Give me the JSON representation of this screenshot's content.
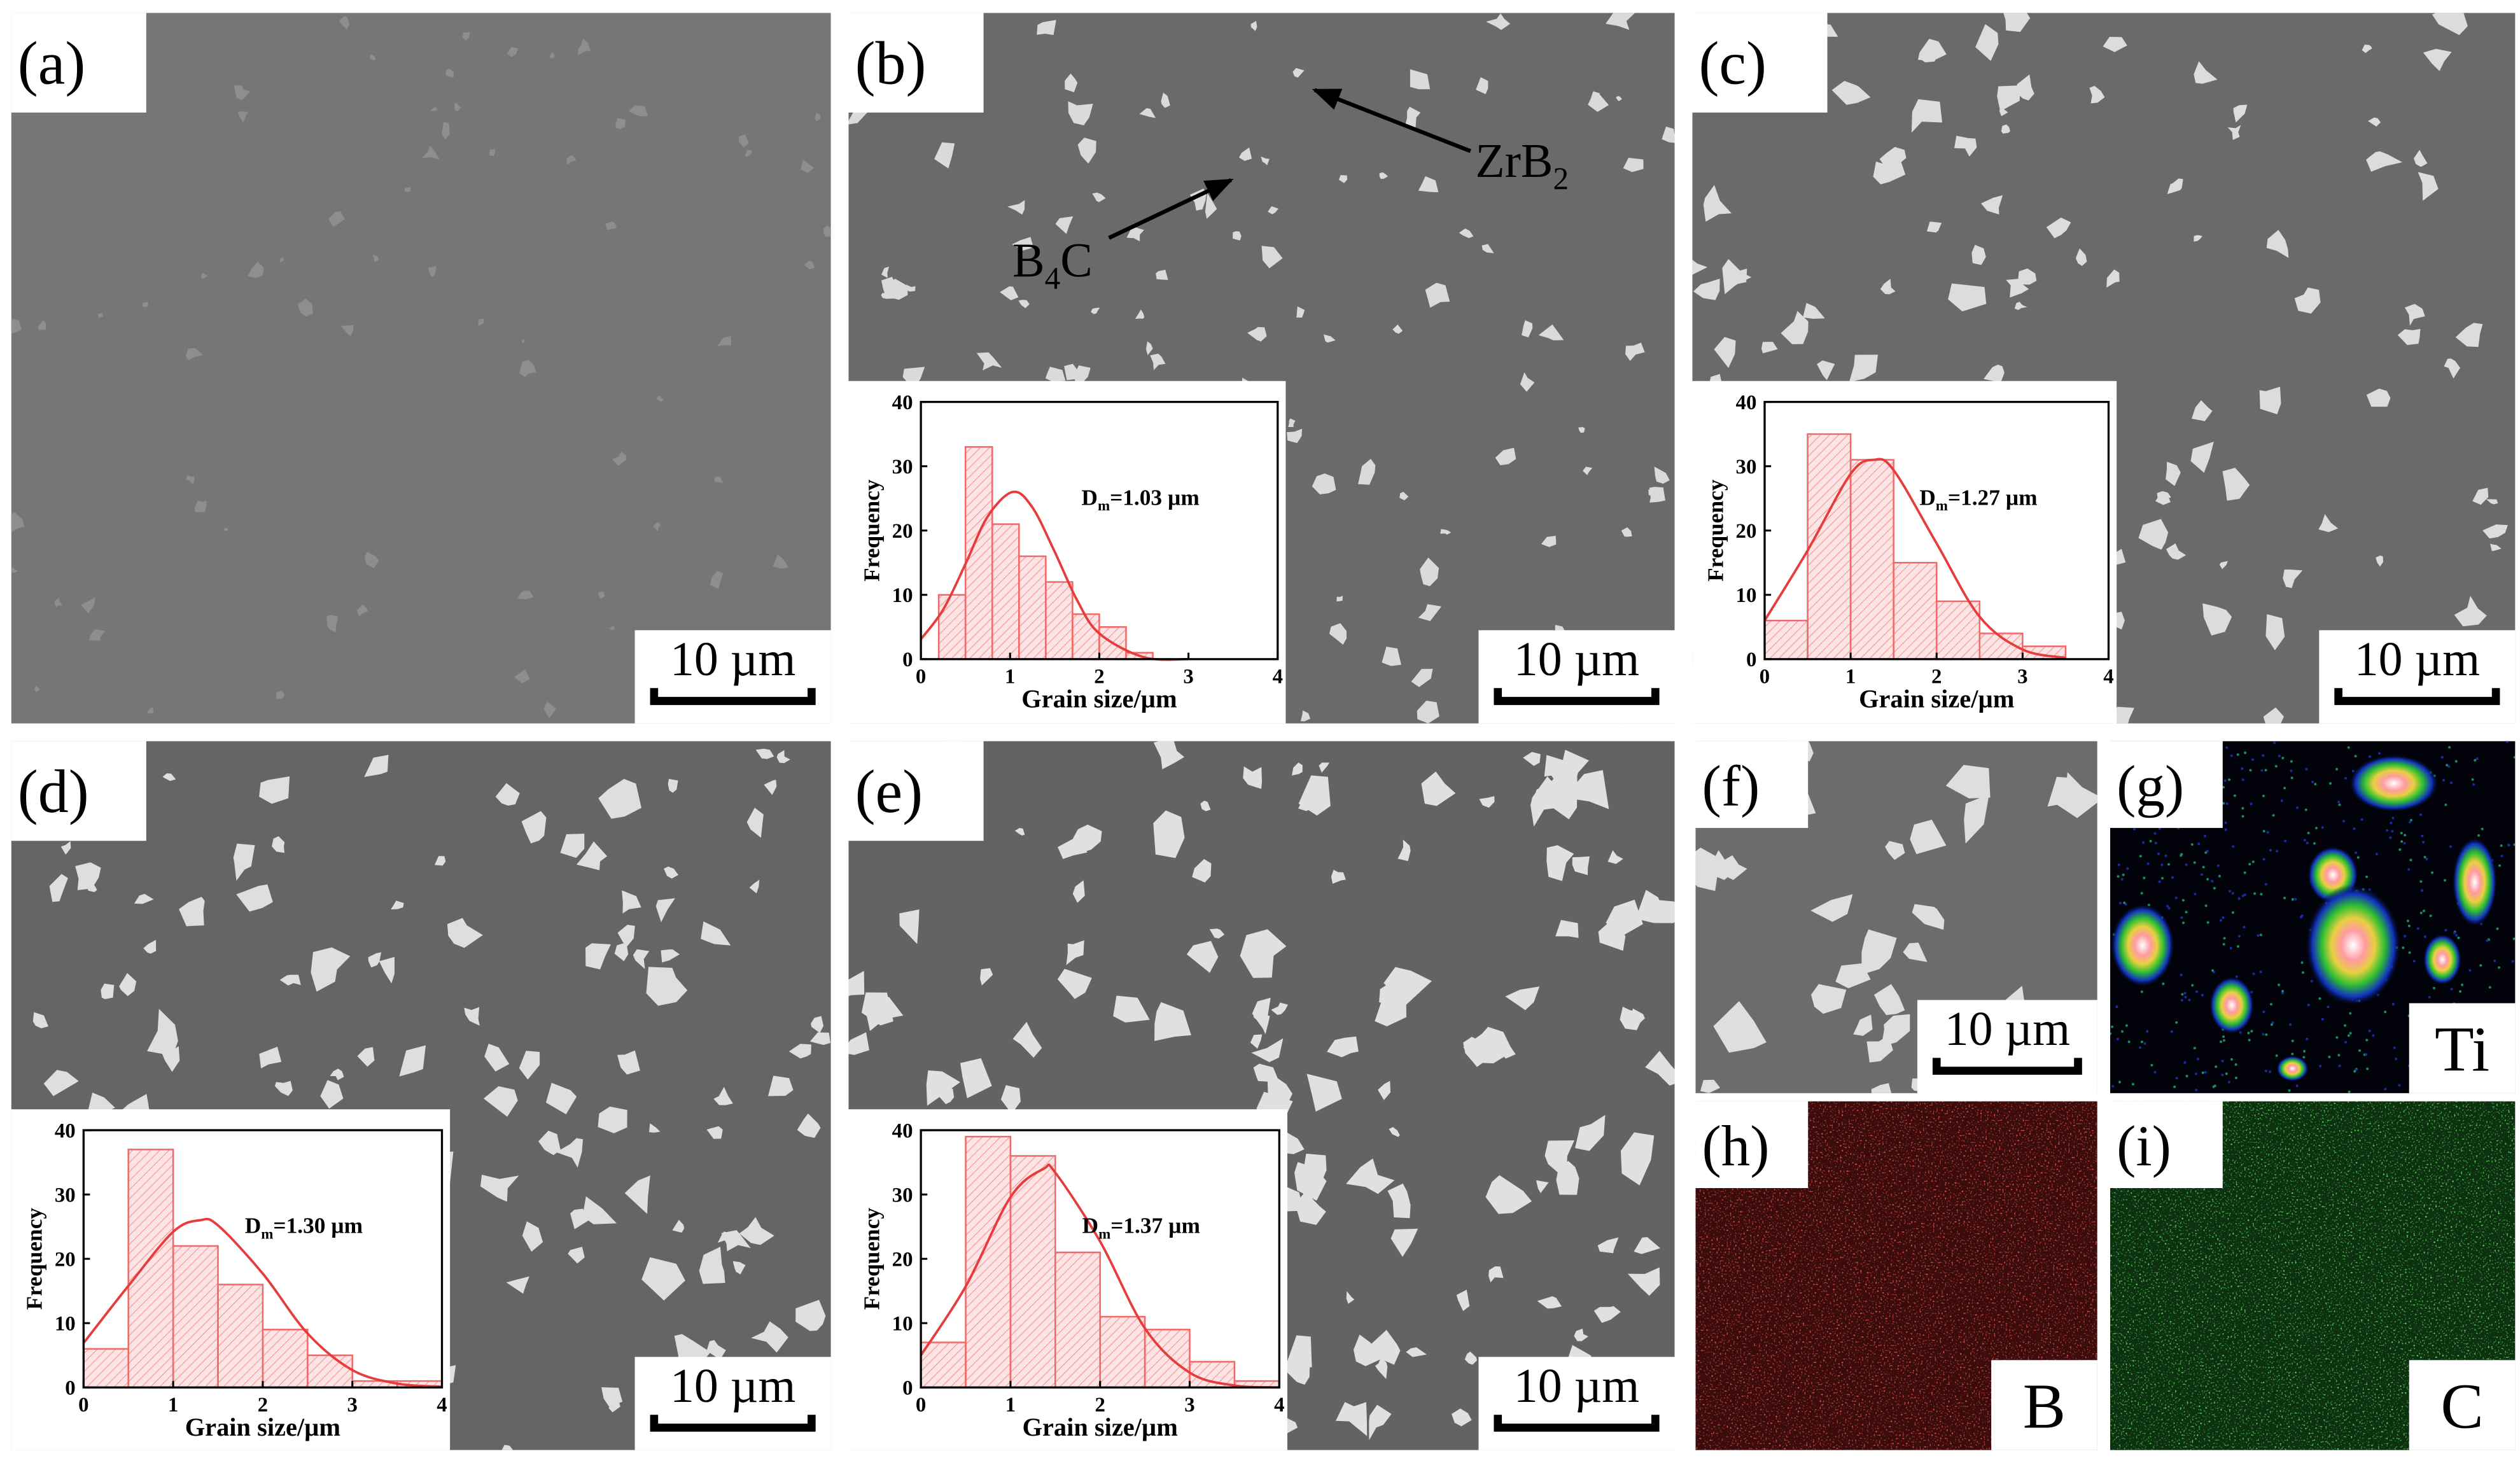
{
  "panels": [
    {
      "label": "(a)",
      "scale_bar": "10 µm"
    },
    {
      "label": "(b)",
      "scale_bar": "10 µm",
      "annotations": [
        {
          "parts": [
            "ZrB",
            "2"
          ]
        },
        {
          "parts": [
            "B",
            "4",
            "C"
          ]
        }
      ]
    },
    {
      "label": "(c)",
      "scale_bar": "10 µm"
    },
    {
      "label": "(d)",
      "scale_bar": "10 µm"
    },
    {
      "label": "(e)",
      "scale_bar": "10 µm"
    },
    {
      "label": "(f)",
      "scale_bar": "10 µm"
    },
    {
      "label": "(g)",
      "element": "Ti"
    },
    {
      "label": "(h)",
      "element": "B"
    },
    {
      "label": "(i)",
      "element": "C"
    }
  ],
  "chart_data": [
    {
      "type": "histogram",
      "xlabel": "Grain size/µm",
      "ylabel": "Frequency",
      "annotation": [
        "D",
        "m",
        "=1.03 µm"
      ],
      "bins": [
        0.2,
        0.5,
        0.8,
        1.1,
        1.4,
        1.7,
        2.0,
        2.3,
        2.6
      ],
      "values": [
        10,
        33,
        21,
        16,
        12,
        7,
        5,
        1
      ],
      "color": "#f06a6a",
      "fit": {
        "x": [
          0,
          0.25,
          0.5,
          0.75,
          1.03,
          1.25,
          1.5,
          1.75,
          2.0,
          2.5,
          3.0
        ],
        "values": [
          3.1,
          7.7,
          14.8,
          22.2,
          26,
          23.6,
          16.7,
          9.2,
          4.0,
          0.3,
          0
        ],
        "color": "#e63c3c"
      },
      "xlim": [
        0,
        4
      ],
      "ylim": [
        0,
        40
      ],
      "xticks": [
        0,
        1,
        2,
        3,
        4
      ],
      "yticks": [
        0,
        10,
        20,
        30,
        40
      ]
    },
    {
      "type": "histogram",
      "xlabel": "Grain size/µm",
      "ylabel": "Frequency",
      "annotation": [
        "D",
        "m",
        "=1.27 µm"
      ],
      "bins": [
        0,
        0.5,
        1.0,
        1.5,
        2.0,
        2.5,
        3.0,
        3.5
      ],
      "values": [
        6,
        35,
        31,
        15,
        9,
        4,
        2
      ],
      "color": "#f06a6a",
      "fit": {
        "x": [
          0,
          0.5,
          1.0,
          1.27,
          1.5,
          2.0,
          2.5,
          3.0,
          3.5
        ],
        "values": [
          6.0,
          16.9,
          28.8,
          31,
          29.4,
          18.0,
          6.6,
          1.5,
          0.2
        ],
        "color": "#e63c3c"
      },
      "xlim": [
        0,
        4
      ],
      "ylim": [
        0,
        40
      ],
      "xticks": [
        0,
        1,
        2,
        3,
        4
      ],
      "yticks": [
        0,
        10,
        20,
        30,
        40
      ]
    },
    {
      "type": "histogram",
      "xlabel": "Grain size/µm",
      "ylabel": "Frequency",
      "annotation": [
        "D",
        "m",
        "=1.30 µm"
      ],
      "bins": [
        0,
        0.5,
        1.0,
        1.5,
        2.0,
        2.5,
        3.0,
        3.5,
        4.0
      ],
      "values": [
        6,
        37,
        22,
        16,
        9,
        5,
        1,
        1
      ],
      "color": "#f06a6a",
      "fit": {
        "x": [
          0,
          0.5,
          1.0,
          1.3,
          1.5,
          2.0,
          2.5,
          3.0,
          3.5,
          4.0
        ],
        "values": [
          6.9,
          15.8,
          24.2,
          26,
          25.2,
          17.7,
          8.4,
          2.7,
          0.6,
          0.1
        ],
        "color": "#e63c3c"
      },
      "xlim": [
        0,
        4
      ],
      "ylim": [
        0,
        40
      ],
      "xticks": [
        0,
        1,
        2,
        3,
        4
      ],
      "yticks": [
        0,
        10,
        20,
        30,
        40
      ]
    },
    {
      "type": "histogram",
      "xlabel": "Grain size/µm",
      "ylabel": "Frequency",
      "annotation": [
        "D",
        "m",
        "=1.37 µm"
      ],
      "bins": [
        0,
        0.5,
        1.0,
        1.5,
        2.0,
        2.5,
        3.0,
        3.5,
        4.0
      ],
      "values": [
        7,
        39,
        36,
        21,
        11,
        9,
        4,
        1
      ],
      "color": "#f06a6a",
      "fit": {
        "x": [
          0,
          0.5,
          1.0,
          1.37,
          1.5,
          2.0,
          2.5,
          3.0,
          3.5,
          4.0
        ],
        "values": [
          5.0,
          15.7,
          29.6,
          34,
          33.4,
          22.7,
          9.2,
          2.3,
          0.3,
          0
        ],
        "color": "#e63c3c"
      },
      "xlim": [
        0,
        4
      ],
      "ylim": [
        0,
        40
      ],
      "xticks": [
        0,
        1,
        2,
        3,
        4
      ],
      "yticks": [
        0,
        10,
        20,
        30,
        40
      ]
    }
  ]
}
